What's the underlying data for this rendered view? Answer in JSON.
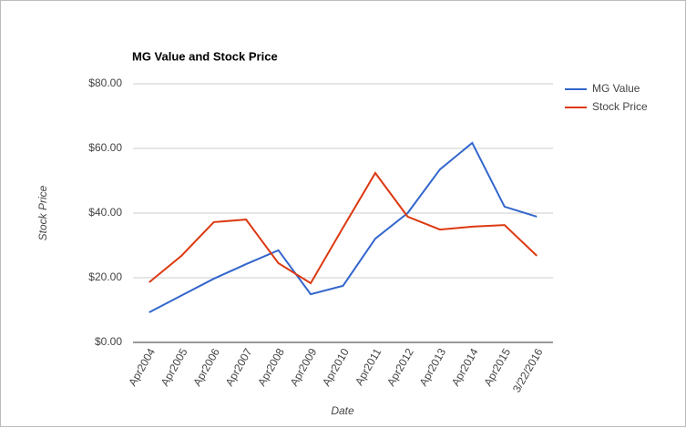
{
  "chart_data": {
    "type": "line",
    "title": "MG Value and Stock Price",
    "x_label": "Date",
    "y_label": "Stock Price",
    "categories": [
      "Apr2004",
      "Apr2005",
      "Apr2006",
      "Apr2007",
      "Apr2008",
      "Apr2009",
      "Apr2010",
      "Apr2011",
      "Apr2012",
      "Apr2013",
      "Apr2014",
      "Apr2015",
      "3/22/2016"
    ],
    "series": [
      {
        "name": "MG Value",
        "color": "#3366cc",
        "values": [
          9.3,
          14.5,
          19.7,
          24.2,
          28.5,
          14.9,
          17.5,
          32.1,
          40,
          53.5,
          61.7,
          42,
          38.9
        ]
      },
      {
        "name": "Stock Price",
        "color": "#dc3912",
        "values": [
          18.6,
          26.8,
          37.2,
          38,
          24.5,
          18.3,
          35.5,
          52.4,
          38.9,
          34.9,
          35.8,
          36.3,
          26.8
        ]
      }
    ],
    "ylim": [
      0,
      80
    ],
    "yticks": [
      {
        "value": 0,
        "label": "$0.00"
      },
      {
        "value": 20,
        "label": "$20.00"
      },
      {
        "value": 40,
        "label": "$40.00"
      },
      {
        "value": 60,
        "label": "$60.00"
      },
      {
        "value": 80,
        "label": "$80.00"
      }
    ],
    "grid": true,
    "legend": "right"
  }
}
